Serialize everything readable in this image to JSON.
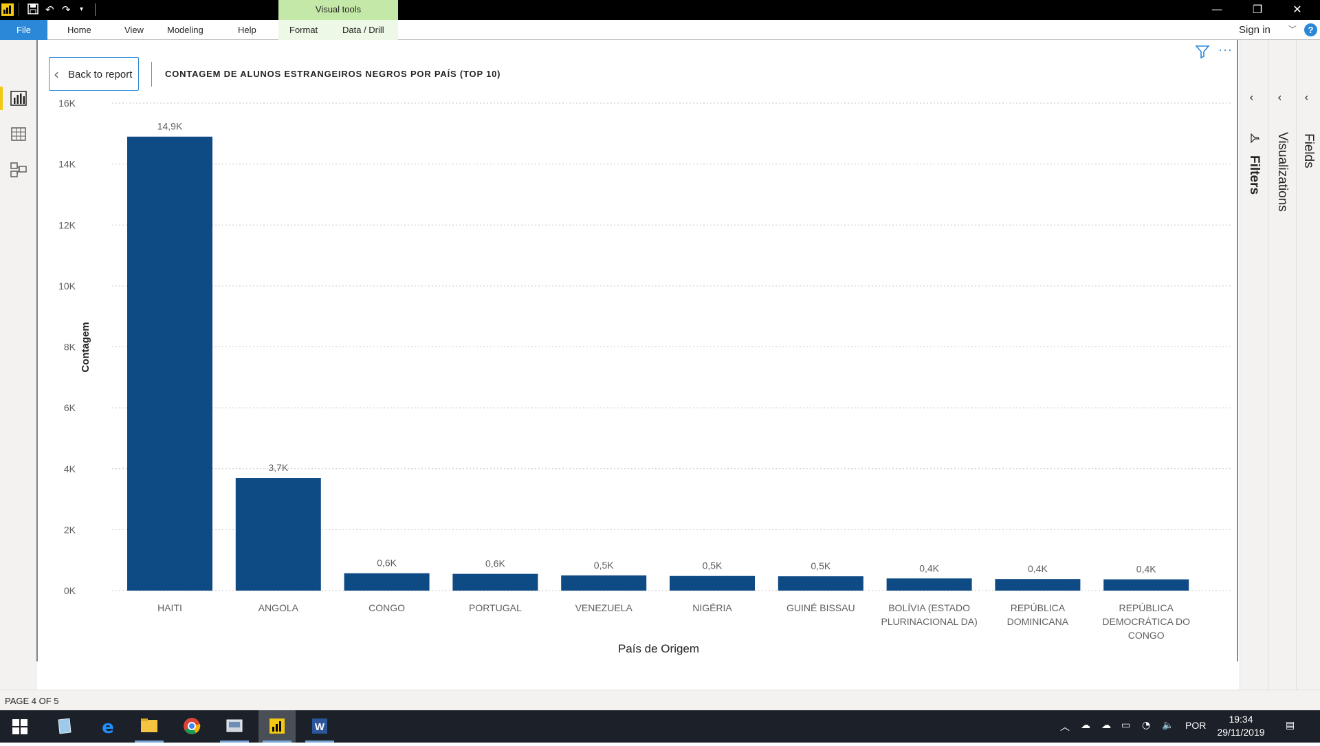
{
  "window": {
    "contextual_tab": "Visual tools",
    "controls": {
      "minimize": "—",
      "restore": "❐",
      "close": "✕"
    }
  },
  "ribbon": {
    "file_label": "File",
    "tabs": [
      "Home",
      "View",
      "Modeling",
      "Help",
      "Format",
      "Data / Drill"
    ],
    "sign_in": "Sign in",
    "help": "?"
  },
  "report": {
    "back_label": "Back to report",
    "chart_title": "CONTAGEM DE ALUNOS ESTRANGEIROS NEGROS POR PAÍS (TOP 10)"
  },
  "panes": {
    "filters": "Filters",
    "visualizations": "Visualizations",
    "fields": "Fields"
  },
  "status": {
    "page": "PAGE 4 OF 5"
  },
  "taskbar": {
    "language": "POR",
    "time": "19:34",
    "date": "29/11/2019"
  },
  "colors": {
    "bar": "#0e4a84",
    "accent": "#f2c811",
    "ribbon_blue": "#2b88d8",
    "visual_tools": "#c4e8a7",
    "taskbar": "#1b2029"
  },
  "chart_data": {
    "type": "bar",
    "title": "CONTAGEM DE ALUNOS ESTRANGEIROS NEGROS POR PAÍS (TOP 10)",
    "xlabel": "País de Origem",
    "ylabel": "Contagem",
    "ylim": [
      0,
      16000
    ],
    "yticks": [
      "0K",
      "2K",
      "4K",
      "6K",
      "8K",
      "10K",
      "12K",
      "14K",
      "16K"
    ],
    "ytick_values": [
      0,
      2000,
      4000,
      6000,
      8000,
      10000,
      12000,
      14000,
      16000
    ],
    "grid": true,
    "categories": [
      [
        "HAITI"
      ],
      [
        "ANGOLA"
      ],
      [
        "CONGO"
      ],
      [
        "PORTUGAL"
      ],
      [
        "VENEZUELA"
      ],
      [
        "NIGÉRIA"
      ],
      [
        "GUINÉ BISSAU"
      ],
      [
        "BOLÍVIA (ESTADO",
        "PLURINACIONAL DA)"
      ],
      [
        "REPÚBLICA",
        "DOMINICANA"
      ],
      [
        "REPÚBLICA",
        "DEMOCRÁTICA DO",
        "CONGO"
      ]
    ],
    "values": [
      14900,
      3700,
      570,
      550,
      500,
      480,
      470,
      400,
      380,
      370
    ],
    "data_labels": [
      "14,9K",
      "3,7K",
      "0,6K",
      "0,6K",
      "0,5K",
      "0,5K",
      "0,5K",
      "0,4K",
      "0,4K",
      "0,4K"
    ]
  }
}
